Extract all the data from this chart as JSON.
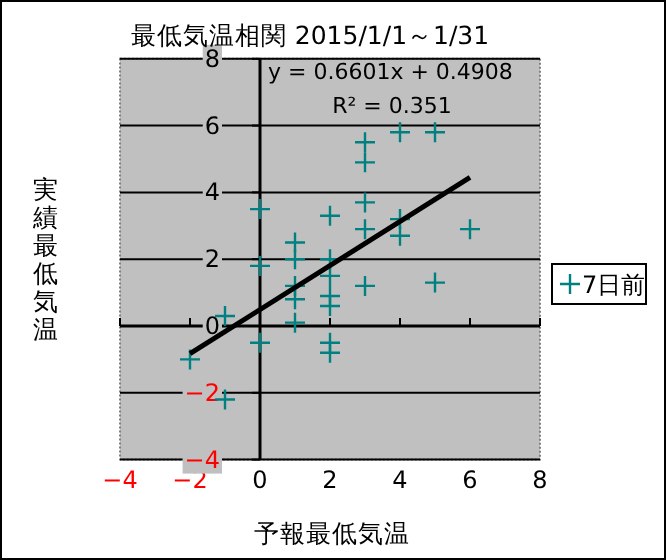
{
  "chart_data": {
    "type": "scatter",
    "title": "最低気温相関 2015/1/1～1/31",
    "xlabel": "予報最低気温",
    "ylabel": "実績最低気温",
    "annotations": [
      "y = 0.6601x + 0.4908",
      "R² = 0.351"
    ],
    "xlim": [
      -4,
      8
    ],
    "xticks": [
      -4,
      -2,
      0,
      2,
      4,
      6,
      8
    ],
    "ylim": [
      -4,
      8
    ],
    "yticks": [
      -4,
      -2,
      0,
      2,
      4,
      6,
      8
    ],
    "grid": "y",
    "legend": "right",
    "marker": "cross",
    "series": [
      {
        "name": "7日前",
        "type": "scatter",
        "color": "#008080",
        "x": [
          3,
          4,
          5,
          3,
          3,
          0,
          2,
          4,
          3,
          4,
          6,
          1,
          1,
          2,
          0,
          2,
          3,
          5,
          1,
          1,
          2,
          2,
          1,
          -1,
          0,
          2,
          2,
          -2,
          -1
        ],
        "values": [
          5.5,
          5.8,
          5.8,
          4.9,
          3.7,
          3.5,
          3.3,
          3.2,
          2.9,
          2.7,
          2.9,
          2.5,
          2.0,
          2.0,
          1.8,
          1.5,
          1.2,
          1.3,
          1.2,
          0.8,
          0.9,
          0.6,
          0.1,
          0.3,
          -0.5,
          -0.5,
          -0.8,
          -1.0,
          -2.2
        ]
      },
      {
        "type": "line",
        "marker": "none",
        "color": "#000000",
        "x": [
          -2,
          6
        ],
        "values": [
          -0.83,
          4.45
        ]
      }
    ]
  }
}
